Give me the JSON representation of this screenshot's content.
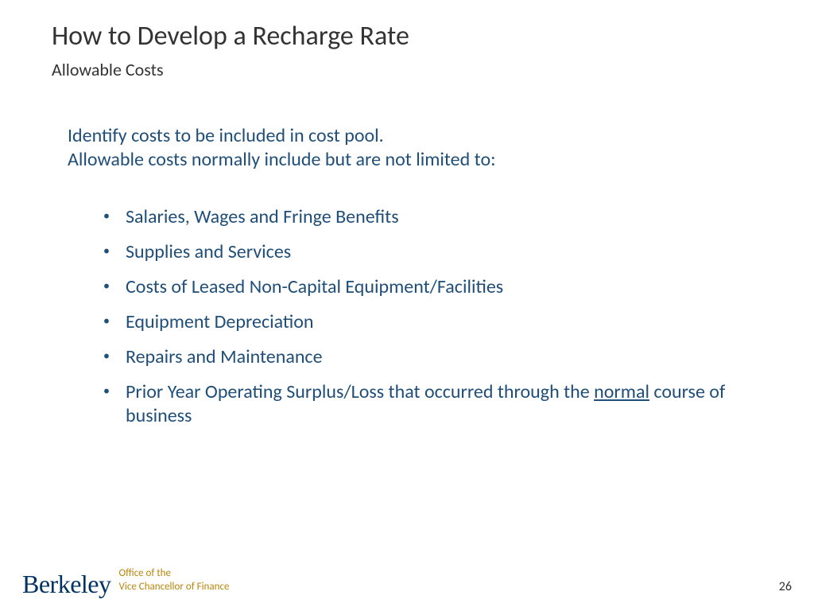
{
  "title": "How to Develop a Recharge Rate",
  "subtitle": "Allowable Costs",
  "intro_line1": "Identify costs to be included in cost pool.",
  "intro_line2": "Allowable costs normally include but are not limited to:",
  "bullets": [
    {
      "text": "Salaries, Wages and Fringe Benefits"
    },
    {
      "text": "Supplies and Services"
    },
    {
      "text": "Costs of Leased Non-Capital Equipment/Facilities"
    },
    {
      "text": "Equipment Depreciation"
    },
    {
      "text": "Repairs and Maintenance"
    }
  ],
  "bullet_special": {
    "prefix": "Prior Year Operating Surplus/Loss that occurred through the ",
    "underlined": "normal",
    "suffix": " course of business"
  },
  "logo": {
    "berkeley": "Berkeley",
    "office_line1": "Office of the",
    "office_line2": "Vice Chancellor of Finance"
  },
  "page_number": "26",
  "colors": {
    "title_color": "#333333",
    "body_color": "#1f4e79",
    "berkeley_blue": "#003262",
    "office_gold": "#b8860b",
    "background": "#ffffff"
  },
  "typography": {
    "title_fontsize": 34,
    "subtitle_fontsize": 22,
    "body_fontsize": 24,
    "logo_fontsize": 32,
    "office_fontsize": 13,
    "page_number_fontsize": 16
  }
}
